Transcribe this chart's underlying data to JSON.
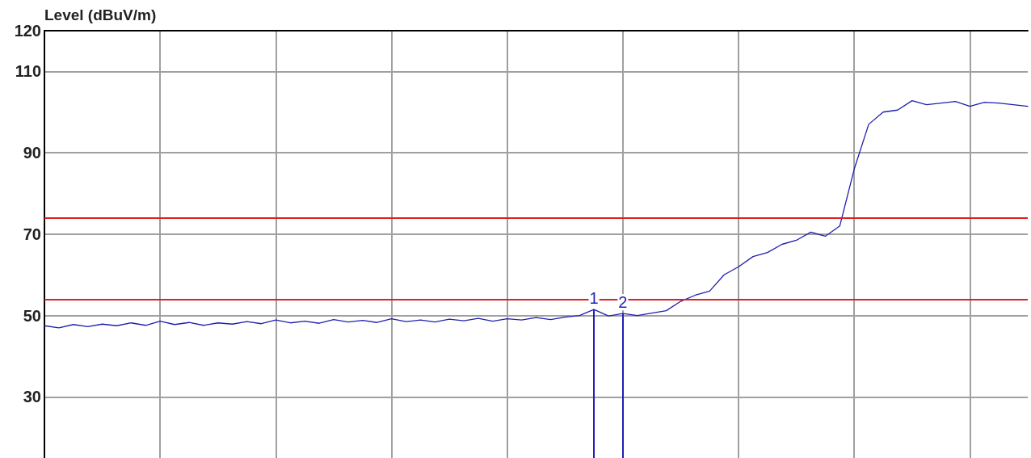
{
  "chart_data": {
    "type": "line",
    "ylabel": "Level (dBuV/m)",
    "categories": [
      null,
      null,
      null,
      null,
      null,
      null,
      null,
      null,
      null,
      null,
      null,
      null,
      null,
      null,
      null,
      null,
      null,
      null,
      null,
      null,
      null,
      null,
      null,
      null,
      null,
      null,
      null,
      null,
      null,
      null,
      null,
      null,
      null,
      null,
      null,
      null,
      null,
      null,
      null,
      null,
      null,
      null,
      null,
      null,
      null,
      null,
      null,
      null,
      null,
      null,
      null,
      null,
      null,
      null,
      null,
      null,
      null,
      null,
      null,
      null,
      null,
      null,
      null,
      null,
      null,
      null,
      null,
      null,
      null
    ],
    "ylim": [
      15,
      120
    ],
    "yticks": [
      30,
      50,
      70,
      90,
      110,
      120
    ],
    "tick_labels": "y",
    "grid": true,
    "marker": "none",
    "line_style": "solid",
    "series": [
      {
        "color": "#1f1fb0",
        "values": [
          47.5,
          47.0,
          47.8,
          47.3,
          47.9,
          47.5,
          48.2,
          47.6,
          48.6,
          47.8,
          48.3,
          47.6,
          48.2,
          47.9,
          48.5,
          48.0,
          48.9,
          48.2,
          48.6,
          48.1,
          49.0,
          48.4,
          48.8,
          48.3,
          49.2,
          48.5,
          48.9,
          48.4,
          49.1,
          48.7,
          49.3,
          48.6,
          49.2,
          48.9,
          49.5,
          49.0,
          49.6,
          50.0,
          51.5,
          49.9,
          50.5,
          50.0,
          50.6,
          51.2,
          53.5,
          55.0,
          56.0,
          60.0,
          62.0,
          64.5,
          65.5,
          67.5,
          68.5,
          70.5,
          69.5,
          72.0,
          86.0,
          97.0,
          100.0,
          100.5,
          102.8,
          101.8,
          102.2,
          102.6,
          101.4,
          102.4,
          102.2,
          101.8,
          101.4
        ]
      }
    ],
    "annotations": [
      {
        "text": "1",
        "y": 51.5
      },
      {
        "text": "2",
        "y": 50.5
      }
    ],
    "ref_lines": [
      {
        "axis": "y",
        "value": 74,
        "color": "#e02020"
      },
      {
        "axis": "y",
        "value": 54,
        "color": "#e02020"
      }
    ]
  }
}
